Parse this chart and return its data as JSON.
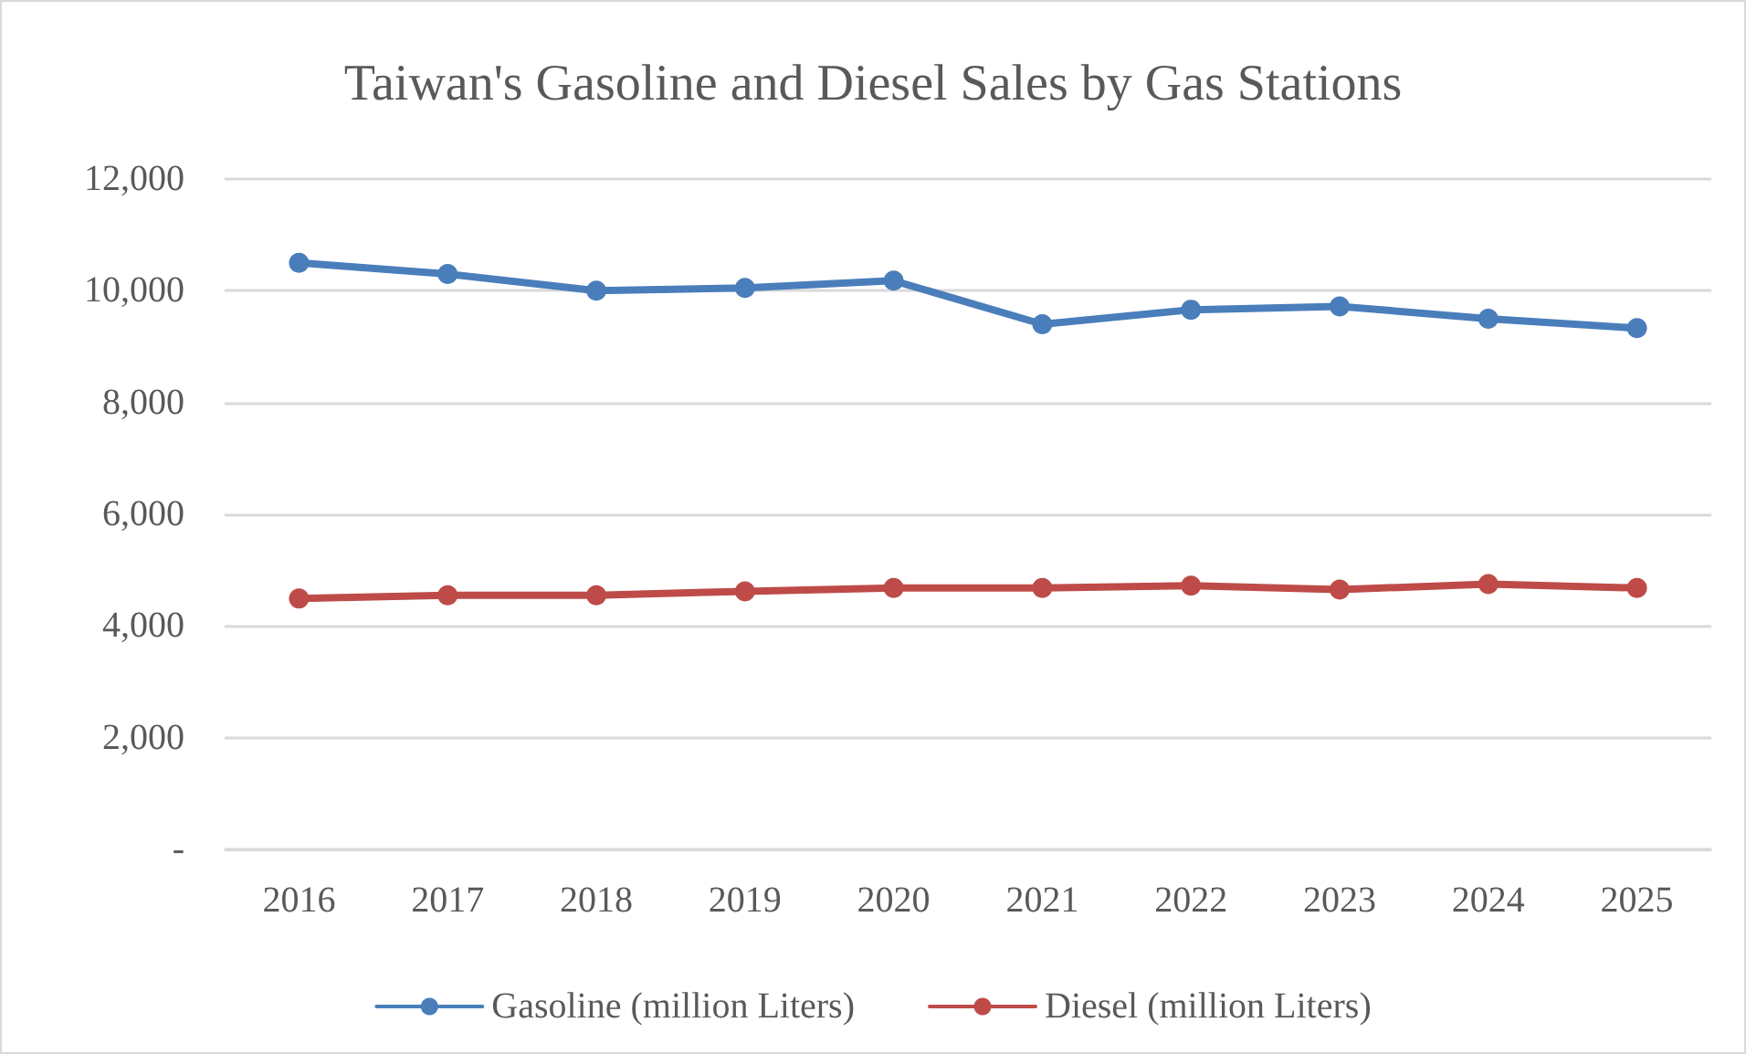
{
  "chart_data": {
    "type": "line",
    "title": "Taiwan's Gasoline and Diesel Sales by Gas Stations",
    "categories": [
      "2016",
      "2017",
      "2018",
      "2019",
      "2020",
      "2021",
      "2022",
      "2023",
      "2024",
      "2025"
    ],
    "series": [
      {
        "name": "Gasoline (million Liters)",
        "color": "#4a7ebb",
        "values": [
          10500,
          10300,
          10000,
          10050,
          10180,
          9400,
          9660,
          9720,
          9500,
          9330
        ]
      },
      {
        "name": "Diesel (million Liters)",
        "color": "#be4b48",
        "values": [
          4490,
          4550,
          4550,
          4620,
          4680,
          4680,
          4720,
          4650,
          4750,
          4680
        ]
      }
    ],
    "ylim": [
      0,
      12000
    ],
    "yticks": [
      {
        "value": 0,
        "label": "-"
      },
      {
        "value": 2000,
        "label": "2,000"
      },
      {
        "value": 4000,
        "label": "4,000"
      },
      {
        "value": 6000,
        "label": "6,000"
      },
      {
        "value": 8000,
        "label": "8,000"
      },
      {
        "value": 10000,
        "label": "10,000"
      },
      {
        "value": 12000,
        "label": "12,000"
      }
    ],
    "grid": "y",
    "legend": "bottom",
    "marker": "circle",
    "line_style": "solid"
  }
}
